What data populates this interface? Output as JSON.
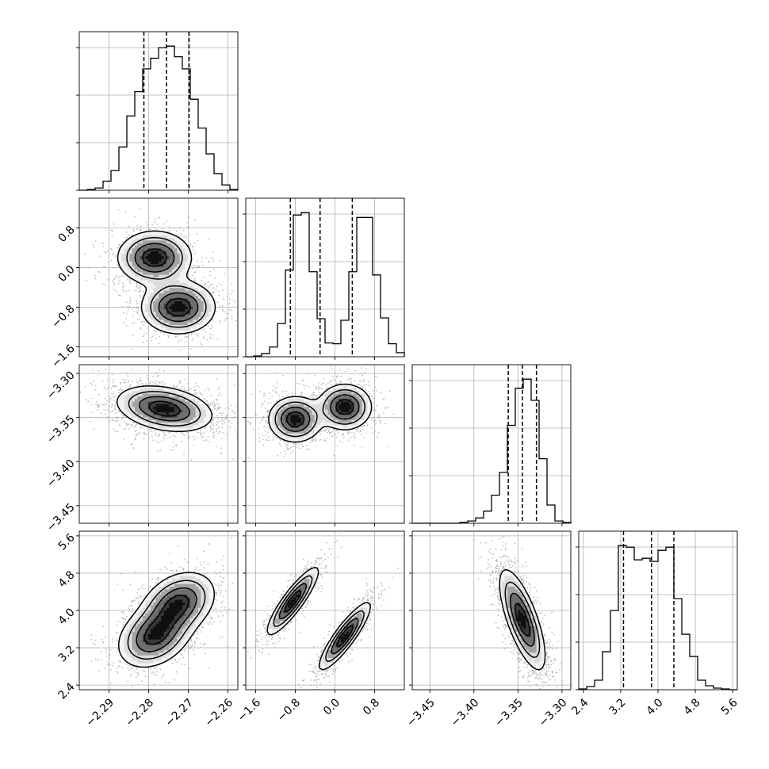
{
  "chart_data": {
    "type": "corner",
    "description_hidden": false,
    "dimensions": 4,
    "axes": [
      {
        "range": [
          -2.2975,
          -2.2575
        ],
        "ticks": [
          -2.29,
          -2.28,
          -2.27,
          -2.26
        ],
        "tick_labels": [
          "−2.29",
          "−2.28",
          "−2.27",
          "−2.26"
        ]
      },
      {
        "range": [
          -1.8,
          1.4
        ],
        "ticks": [
          -1.6,
          -0.8,
          0.0,
          0.8
        ],
        "tick_labels": [
          "−1.6",
          "−0.8",
          "0.0",
          "0.8"
        ]
      },
      {
        "range": [
          -3.47,
          -3.29
        ],
        "ticks": [
          -3.45,
          -3.4,
          -3.35,
          -3.3
        ],
        "tick_labels": [
          "−3.45",
          "−3.40",
          "−3.35",
          "−3.30"
        ]
      },
      {
        "range": [
          2.3,
          5.7
        ],
        "ticks": [
          2.4,
          3.2,
          4.0,
          4.8,
          5.6
        ],
        "tick_labels": [
          "2.4",
          "3.2",
          "4.0",
          "4.8",
          "5.6"
        ]
      }
    ],
    "histograms": [
      {
        "dim": 0,
        "quantiles": [
          -2.2812,
          -2.2755,
          -2.2698
        ],
        "bins": [
          -2.2975,
          -2.2955,
          -2.2935,
          -2.2915,
          -2.2895,
          -2.2875,
          -2.2855,
          -2.2835,
          -2.2815,
          -2.2795,
          -2.2775,
          -2.2755,
          -2.2735,
          -2.2715,
          -2.2695,
          -2.2675,
          -2.2655,
          -2.2635,
          -2.2615,
          -2.2595,
          -2.2575
        ],
        "counts": [
          0,
          1,
          3,
          12,
          26,
          57,
          98,
          130,
          160,
          174,
          188,
          190,
          176,
          160,
          120,
          82,
          48,
          22,
          7,
          1
        ]
      },
      {
        "dim": 1,
        "quantiles": [
          -0.9,
          -0.3,
          0.35
        ],
        "bins": [
          -1.8,
          -1.64,
          -1.48,
          -1.32,
          -1.16,
          -1.0,
          -0.84,
          -0.68,
          -0.52,
          -0.36,
          -0.2,
          -0.04,
          0.12,
          0.28,
          0.44,
          0.6,
          0.76,
          0.92,
          1.08,
          1.24,
          1.4
        ],
        "counts": [
          0,
          1,
          4,
          12,
          41,
          107,
          175,
          178,
          105,
          47,
          17,
          16,
          45,
          105,
          172,
          172,
          101,
          48,
          16,
          5
        ]
      },
      {
        "dim": 2,
        "quantiles": [
          -3.361,
          -3.345,
          -3.329
        ],
        "bins": [
          -3.47,
          -3.461,
          -3.452,
          -3.443,
          -3.434,
          -3.425,
          -3.416,
          -3.407,
          -3.398,
          -3.389,
          -3.38,
          -3.371,
          -3.362,
          -3.353,
          -3.344,
          -3.335,
          -3.326,
          -3.317,
          -3.308,
          -3.299,
          -3.29
        ],
        "counts": [
          0,
          0,
          0,
          0,
          0,
          0,
          1,
          3,
          7,
          16,
          37,
          67,
          129,
          178,
          190,
          162,
          85,
          24,
          3,
          1
        ]
      },
      {
        "dim": 3,
        "quantiles": [
          3.26,
          3.86,
          4.34
        ],
        "bins": [
          2.3,
          2.47,
          2.64,
          2.81,
          2.98,
          3.15,
          3.32,
          3.49,
          3.66,
          3.83,
          4.0,
          4.17,
          4.34,
          4.51,
          4.68,
          4.85,
          5.02,
          5.19,
          5.36,
          5.53,
          5.7
        ],
        "counts": [
          1,
          4,
          12,
          48,
          100,
          182,
          180,
          164,
          166,
          162,
          176,
          180,
          115,
          70,
          42,
          12,
          5,
          2,
          1,
          0
        ]
      }
    ],
    "pairs": [
      {
        "x_dim": 0,
        "y_dim": 1,
        "modes": [
          {
            "mx": -2.2785,
            "my": 0.2,
            "sx": 0.0045,
            "sy": 0.26,
            "rho": 0.0,
            "w": 0.5
          },
          {
            "mx": -2.2725,
            "my": -0.8,
            "sx": 0.0045,
            "sy": 0.26,
            "rho": 0.0,
            "w": 0.5
          }
        ]
      },
      {
        "x_dim": 0,
        "y_dim": 2,
        "modes": [
          {
            "mx": -2.276,
            "my": -3.34,
            "sx": 0.0058,
            "sy": 0.0125,
            "rho": -0.3,
            "w": 1.0
          }
        ]
      },
      {
        "x_dim": 1,
        "y_dim": 2,
        "modes": [
          {
            "mx": -0.8,
            "my": -3.352,
            "sx": 0.26,
            "sy": 0.0125,
            "rho": 0.0,
            "w": 0.5
          },
          {
            "mx": 0.2,
            "my": -3.338,
            "sx": 0.26,
            "sy": 0.0125,
            "rho": 0.0,
            "w": 0.5
          }
        ]
      },
      {
        "x_dim": 0,
        "y_dim": 3,
        "modes": [
          {
            "mx": -2.2785,
            "my": 3.45,
            "sx": 0.0045,
            "sy": 0.33,
            "rho": 0.3,
            "w": 0.5
          },
          {
            "mx": -2.2725,
            "my": 4.15,
            "sx": 0.0045,
            "sy": 0.33,
            "rho": 0.3,
            "w": 0.5
          }
        ]
      },
      {
        "x_dim": 1,
        "y_dim": 3,
        "modes": [
          {
            "mx": -0.85,
            "my": 4.2,
            "sx": 0.25,
            "sy": 0.35,
            "rho": 0.88,
            "w": 0.5
          },
          {
            "mx": 0.2,
            "my": 3.45,
            "sx": 0.25,
            "sy": 0.35,
            "rho": 0.88,
            "w": 0.5
          }
        ]
      },
      {
        "x_dim": 2,
        "y_dim": 3,
        "modes": [
          {
            "mx": -3.345,
            "my": 3.8,
            "sx": 0.0125,
            "sy": 0.52,
            "rho": -0.72,
            "w": 1.0
          }
        ]
      }
    ]
  }
}
